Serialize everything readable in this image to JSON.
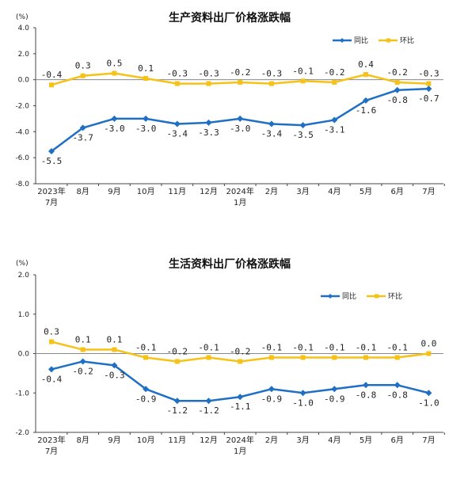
{
  "chart_data": [
    {
      "type": "line",
      "title": "生产资料出厂价格涨跌幅",
      "unit": "(%)",
      "ylim": [
        -8.0,
        4.0
      ],
      "yticks": [
        "4.0",
        "2.0",
        "0.0",
        "-2.0",
        "-4.0",
        "-6.0",
        "-8.0"
      ],
      "ytick_values": [
        4,
        2,
        0,
        -2,
        -4,
        -6,
        -8
      ],
      "categories": [
        [
          "2023年",
          "7月"
        ],
        [
          "8月"
        ],
        [
          "9月"
        ],
        [
          "10月"
        ],
        [
          "11月"
        ],
        [
          "12月"
        ],
        [
          "2024年",
          "1月"
        ],
        [
          "2月"
        ],
        [
          "3月"
        ],
        [
          "4月"
        ],
        [
          "5月"
        ],
        [
          "6月"
        ],
        [
          "7月"
        ]
      ],
      "legend": "top-right",
      "series": [
        {
          "name": "同比",
          "color": "#1f6fc4",
          "values": [
            -5.5,
            -3.7,
            -3.0,
            -3.0,
            -3.4,
            -3.3,
            -3.0,
            -3.4,
            -3.5,
            -3.1,
            -1.6,
            -0.8,
            -0.7
          ],
          "labels": [
            "-5.5",
            "-3.7",
            "-3.0",
            "-3.0",
            "-3.4",
            "-3.3",
            "-3.0",
            "-3.4",
            "-3.5",
            "-3.1",
            "-1.6",
            "-0.8",
            "-0.7"
          ]
        },
        {
          "name": "环比",
          "color": "#f5c218",
          "values": [
            -0.4,
            0.3,
            0.5,
            0.1,
            -0.3,
            -0.3,
            -0.2,
            -0.3,
            -0.1,
            -0.2,
            0.4,
            -0.2,
            -0.3
          ],
          "labels": [
            "-0.4",
            "0.3",
            "0.5",
            "0.1",
            "-0.3",
            "-0.3",
            "-0.2",
            "-0.3",
            "-0.1",
            "-0.2",
            "0.4",
            "-0.2",
            "-0.3"
          ]
        }
      ]
    },
    {
      "type": "line",
      "title": "生活资料出厂价格涨跌幅",
      "unit": "(%)",
      "ylim": [
        -2.0,
        2.0
      ],
      "yticks": [
        "2.0",
        "1.0",
        "0.0",
        "-1.0",
        "-2.0"
      ],
      "ytick_values": [
        2,
        1,
        0,
        -1,
        -2
      ],
      "categories": [
        [
          "2023年",
          "7月"
        ],
        [
          "8月"
        ],
        [
          "9月"
        ],
        [
          "10月"
        ],
        [
          "11月"
        ],
        [
          "12月"
        ],
        [
          "2024年",
          "1月"
        ],
        [
          "2月"
        ],
        [
          "3月"
        ],
        [
          "4月"
        ],
        [
          "5月"
        ],
        [
          "6月"
        ],
        [
          "7月"
        ]
      ],
      "legend": "top-right",
      "series": [
        {
          "name": "同比",
          "color": "#1f6fc4",
          "values": [
            -0.4,
            -0.2,
            -0.3,
            -0.9,
            -1.2,
            -1.2,
            -1.1,
            -0.9,
            -1.0,
            -0.9,
            -0.8,
            -0.8,
            -1.0
          ],
          "labels": [
            "-0.4",
            "-0.2",
            "-0.3",
            "-0.9",
            "-1.2",
            "-1.2",
            "-1.1",
            "-0.9",
            "-1.0",
            "-0.9",
            "-0.8",
            "-0.8",
            "-1.0"
          ]
        },
        {
          "name": "环比",
          "color": "#f5c218",
          "values": [
            0.3,
            0.1,
            0.1,
            -0.1,
            -0.2,
            -0.1,
            -0.2,
            -0.1,
            -0.1,
            -0.1,
            -0.1,
            -0.1,
            0.0
          ],
          "labels": [
            "0.3",
            "0.1",
            "0.1",
            "-0.1",
            "-0.2",
            "-0.1",
            "-0.2",
            "-0.1",
            "-0.1",
            "-0.1",
            "-0.1",
            "-0.1",
            "0.0"
          ]
        }
      ]
    }
  ]
}
